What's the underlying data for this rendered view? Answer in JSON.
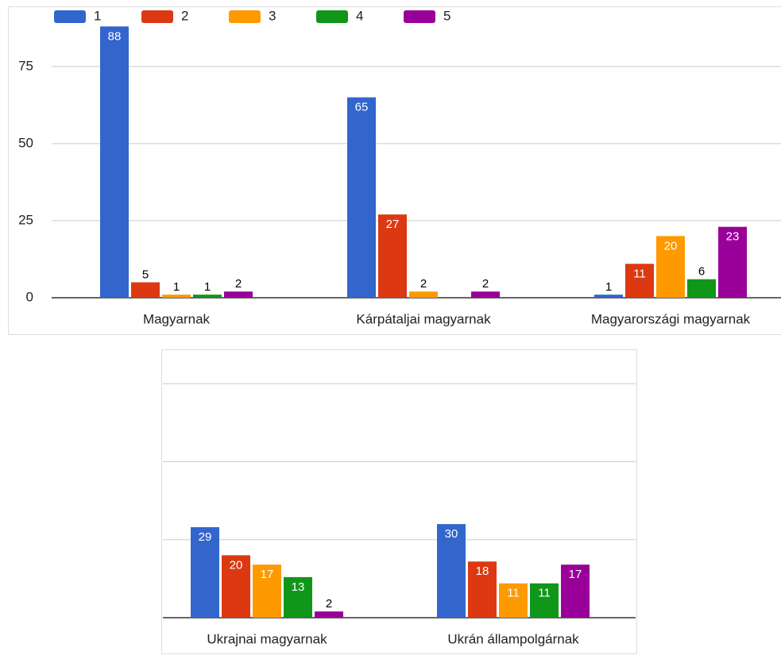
{
  "chart_data": [
    {
      "type": "bar",
      "categories": [
        "Magyarnak",
        "Kárpátaljai magyarnak",
        "Magyarországi magyarnak"
      ],
      "series": [
        {
          "name": "1",
          "color": "#3366cc",
          "values": [
            88,
            65,
            1
          ]
        },
        {
          "name": "2",
          "color": "#dc3912",
          "values": [
            5,
            27,
            11
          ]
        },
        {
          "name": "3",
          "color": "#ff9900",
          "values": [
            1,
            2,
            20
          ]
        },
        {
          "name": "4",
          "color": "#109618",
          "values": [
            1,
            null,
            6
          ]
        },
        {
          "name": "5",
          "color": "#990099",
          "values": [
            2,
            2,
            23
          ]
        }
      ],
      "ylim": [
        0,
        94
      ],
      "yticks": [
        0,
        25,
        50,
        75
      ],
      "grid": true,
      "legend": "top"
    },
    {
      "type": "bar",
      "categories": [
        "Ukrajnai magyarnak",
        "Ukrán állampolgárnak"
      ],
      "series": [
        {
          "name": "1",
          "color": "#3366cc",
          "values": [
            29,
            30
          ]
        },
        {
          "name": "2",
          "color": "#dc3912",
          "values": [
            20,
            18
          ]
        },
        {
          "name": "3",
          "color": "#ff9900",
          "values": [
            17,
            11
          ]
        },
        {
          "name": "4",
          "color": "#109618",
          "values": [
            13,
            11
          ]
        },
        {
          "name": "5",
          "color": "#990099",
          "values": [
            2,
            17
          ]
        }
      ],
      "ylim": [
        0,
        86
      ],
      "yticks": [
        0,
        25,
        50,
        75
      ],
      "grid": true,
      "show_tick_labels": false
    }
  ]
}
